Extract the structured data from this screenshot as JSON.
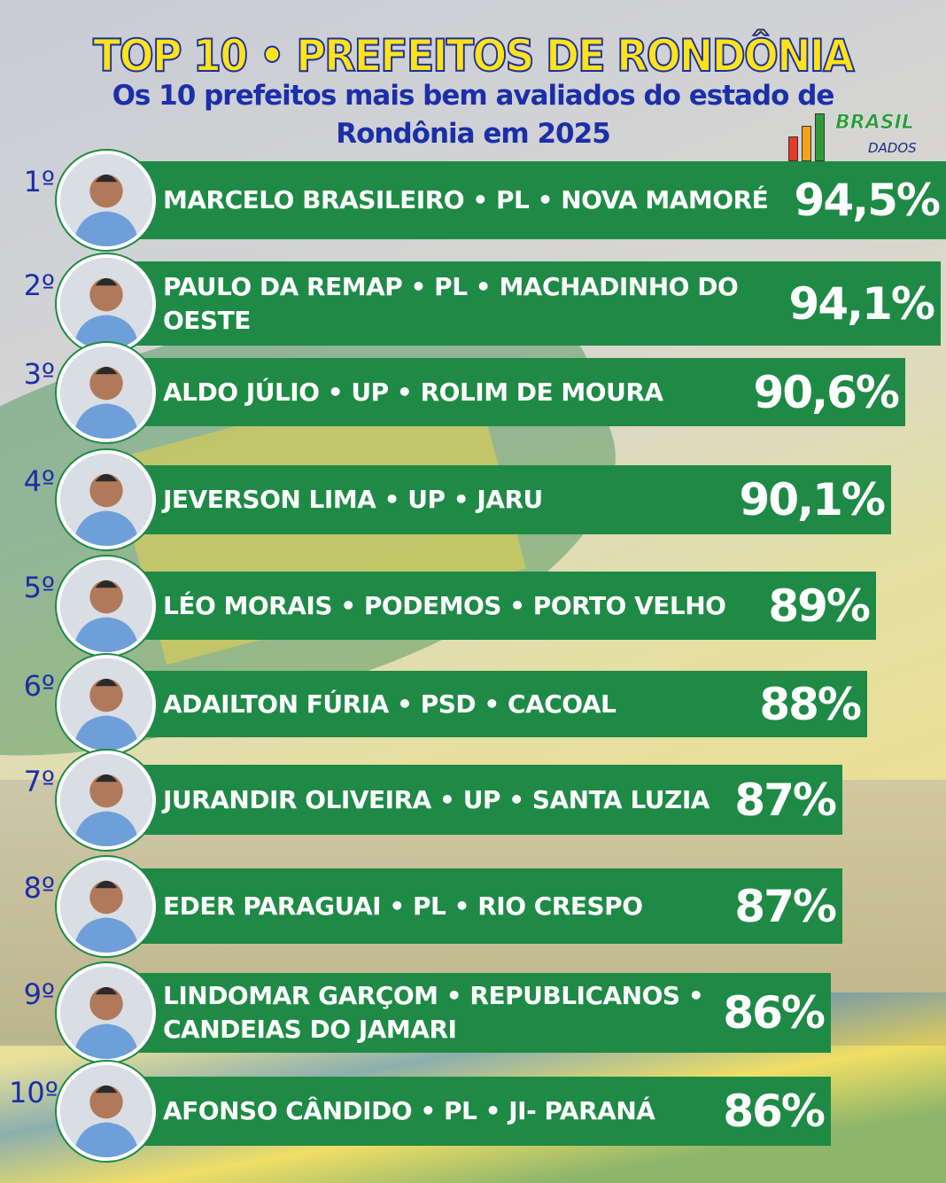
{
  "header": {
    "title": "TOP 10 • PREFEITOS DE RONDÔNIA",
    "subtitle_line1": "Os 10 prefeitos mais bem avaliados do estado de",
    "subtitle_line2": "Rondônia em 2025"
  },
  "logo": {
    "text_top": "BRASIL",
    "text_bottom": "DADOS",
    "colors": [
      "#e53a2a",
      "#f2a21b",
      "#2e9b3a"
    ]
  },
  "colors": {
    "bar": "#1e8a45",
    "title": "#ffe21a",
    "subtitle": "#1a2fa8"
  },
  "ranking": [
    {
      "rank": "1º",
      "name": "MARCELO BRASILEIRO • PL • NOVA MAMORÉ",
      "percent": "94,5%",
      "value": 94.5
    },
    {
      "rank": "2º",
      "name": "PAULO DA REMAP • PL • MACHADINHO DO OESTE",
      "percent": "94,1%",
      "value": 94.1
    },
    {
      "rank": "3º",
      "name": "ALDO JÚLIO • UP • ROLIM DE MOURA",
      "percent": "90,6%",
      "value": 90.6
    },
    {
      "rank": "4º",
      "name": "JEVERSON LIMA • UP • JARU",
      "percent": "90,1%",
      "value": 90.1
    },
    {
      "rank": "5º",
      "name": "LÉO MORAIS • PODEMOS • PORTO VELHO",
      "percent": "89%",
      "value": 89
    },
    {
      "rank": "6º",
      "name": "ADAILTON FÚRIA • PSD • CACOAL",
      "percent": "88%",
      "value": 88
    },
    {
      "rank": "7º",
      "name": "JURANDIR OLIVEIRA • UP • SANTA LUZIA",
      "percent": "87%",
      "value": 87
    },
    {
      "rank": "8º",
      "name": "EDER PARAGUAI • PL • RIO CRESPO",
      "percent": "87%",
      "value": 87
    },
    {
      "rank": "9º",
      "name": "LINDOMAR GARÇOM • REPUBLICANOS • CANDEIAS DO JAMARI",
      "percent": "86%",
      "value": 86
    },
    {
      "rank": "10º",
      "name": "AFONSO CÂNDIDO • PL • JI- PARANÁ",
      "percent": "86%",
      "value": 86
    }
  ]
}
